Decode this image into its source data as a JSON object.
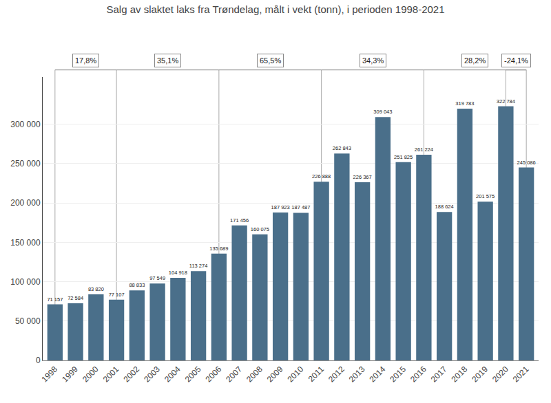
{
  "chart_data": {
    "type": "bar",
    "title": "Salg av slaktet laks fra Trøndelag, målt i vekt (tonn), i perioden 1998-2021",
    "categories": [
      "1998",
      "1999",
      "2000",
      "2001",
      "2002",
      "2003",
      "2004",
      "2005",
      "2006",
      "2007",
      "2008",
      "2009",
      "2010",
      "2011",
      "2012",
      "2013",
      "2014",
      "2015",
      "2016",
      "2017",
      "2018",
      "2019",
      "2020",
      "2021"
    ],
    "values": [
      71157,
      72584,
      83820,
      77107,
      88833,
      97549,
      104918,
      113274,
      135689,
      171456,
      160075,
      187923,
      187487,
      226888,
      262843,
      226367,
      309043,
      251825,
      261224,
      188624,
      319783,
      201575,
      322784,
      245086
    ],
    "value_labels": [
      "71 157",
      "72 584",
      "83 820",
      "77 107",
      "88 833",
      "97 549",
      "104 918",
      "113 274",
      "135 689",
      "171 456",
      "160 075",
      "187 923",
      "187 487",
      "226 888",
      "262 843",
      "226 367",
      "309 043",
      "251 825",
      "261 224",
      "188 624",
      "319 783",
      "201 575",
      "322 784",
      "245 086"
    ],
    "color": "#4a6f8a",
    "ylim": [
      0,
      360000
    ],
    "yticks": [
      0,
      {
        "value": 50000,
        "label": "50 000"
      },
      {
        "value": 100000,
        "label": "100 000"
      },
      {
        "value": 150000,
        "label": "150 000"
      },
      {
        "value": 200000,
        "label": "200 000"
      },
      {
        "value": 250000,
        "label": "250 000"
      },
      {
        "value": 300000,
        "label": "300 000"
      }
    ],
    "grid": true,
    "data_labels": true,
    "annotations": [
      {
        "text": "17,8%",
        "start": "1998",
        "end": "2001"
      },
      {
        "text": "35,1%",
        "start": "2001",
        "end": "2006"
      },
      {
        "text": "65,5%",
        "start": "2006",
        "end": "2011"
      },
      {
        "text": "34,3%",
        "start": "2011",
        "end": "2016"
      },
      {
        "text": "28,2%",
        "start": "2016",
        "end": "2021"
      },
      {
        "text": "-24,1%",
        "start": "2020",
        "end": "2021"
      }
    ]
  }
}
